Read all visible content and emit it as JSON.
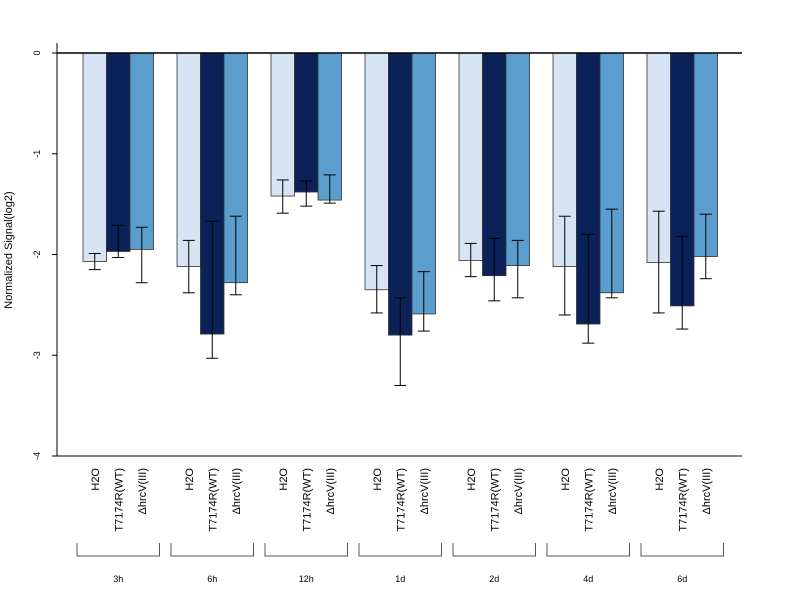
{
  "chart_data": {
    "type": "bar",
    "ylabel": "Normalized Signal(log2)",
    "ylim": [
      -4,
      0
    ],
    "yticks": [
      0,
      -1,
      -2,
      -3,
      -4
    ],
    "series_names": [
      "H2O",
      "T7174R(WT)",
      "ΔhrcV(III)"
    ],
    "colors": [
      "#d6e4f3",
      "#0a2257",
      "#5b9ecd"
    ],
    "groups": [
      {
        "label": "3h",
        "values": [
          -2.07,
          -1.97,
          -1.95
        ],
        "err_low": [
          -2.15,
          -2.03,
          -2.28
        ],
        "err_high": [
          -1.99,
          -1.71,
          -1.73
        ]
      },
      {
        "label": "6h",
        "values": [
          -2.12,
          -2.79,
          -2.28
        ],
        "err_low": [
          -2.38,
          -3.03,
          -2.4
        ],
        "err_high": [
          -1.86,
          -1.67,
          -1.62
        ]
      },
      {
        "label": "12h",
        "values": [
          -1.42,
          -1.38,
          -1.46
        ],
        "err_low": [
          -1.59,
          -1.52,
          -1.49
        ],
        "err_high": [
          -1.26,
          -1.27,
          -1.21
        ]
      },
      {
        "label": "1d",
        "values": [
          -2.35,
          -2.8,
          -2.59
        ],
        "err_low": [
          -2.58,
          -3.3,
          -2.76
        ],
        "err_high": [
          -2.11,
          -2.43,
          -2.17
        ]
      },
      {
        "label": "2d",
        "values": [
          -2.06,
          -2.21,
          -2.11
        ],
        "err_low": [
          -2.22,
          -2.46,
          -2.43
        ],
        "err_high": [
          -1.89,
          -1.84,
          -1.86
        ]
      },
      {
        "label": "4d",
        "values": [
          -2.12,
          -2.69,
          -2.38
        ],
        "err_low": [
          -2.6,
          -2.88,
          -2.43
        ],
        "err_high": [
          -1.62,
          -1.8,
          -1.55
        ]
      },
      {
        "label": "6d",
        "values": [
          -2.08,
          -2.51,
          -2.02
        ],
        "err_low": [
          -2.58,
          -2.74,
          -2.24
        ],
        "err_high": [
          -1.57,
          -1.82,
          -1.6
        ]
      }
    ]
  }
}
